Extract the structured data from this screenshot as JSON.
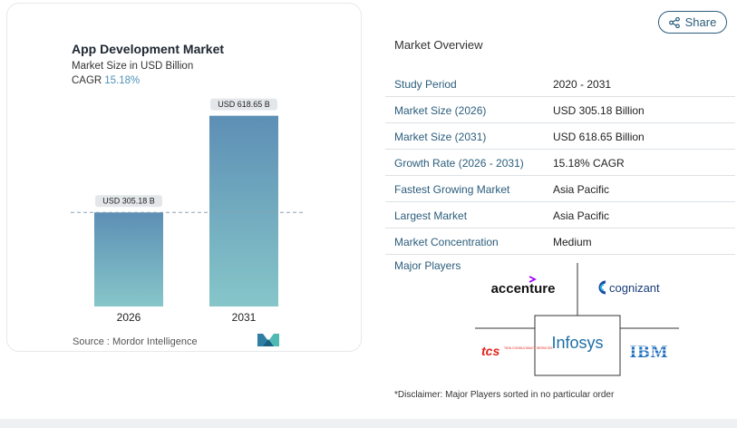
{
  "chart_data": {
    "type": "bar",
    "title": "App Development Market",
    "subtitle": "Market Size in USD Billion",
    "cagr_label": "CAGR",
    "cagr_value": "15.18%",
    "categories": [
      "2026",
      "2031"
    ],
    "values": [
      305.18,
      618.65
    ],
    "data_labels": [
      "USD 305.18 B",
      "USD 618.65 B"
    ],
    "ylim": [
      0,
      700
    ],
    "grid": false
  },
  "source_text": "Source :  Mordor Intelligence",
  "share_label": "Share",
  "overview": {
    "title": "Market Overview",
    "rows": [
      {
        "label": "Study Period",
        "value": "2020 - 2031"
      },
      {
        "label": "Market Size (2026)",
        "value": "USD 305.18 Billion"
      },
      {
        "label": "Market Size (2031)",
        "value": "USD 618.65 Billion"
      },
      {
        "label": "Growth Rate (2026 - 2031)",
        "value": "15.18% CAGR"
      },
      {
        "label": "Fastest Growing Market",
        "value": "Asia Pacific"
      },
      {
        "label": "Largest Market",
        "value": "Asia Pacific"
      },
      {
        "label": "Market Concentration",
        "value": "Medium"
      }
    ],
    "major_players_label": "Major Players",
    "players": [
      "accenture",
      "cognizant",
      "tcs",
      "Infosys",
      "IBM"
    ],
    "tcs_tagline": "TATA CONSULTANCY SERVICES"
  },
  "disclaimer": "*Disclaimer: Major Players sorted in no particular order",
  "colors": {
    "bar_top": "#5d8fb5",
    "bar_bottom": "#86c6c9",
    "link": "#2b5d7c",
    "cagr": "#4f91b8"
  }
}
